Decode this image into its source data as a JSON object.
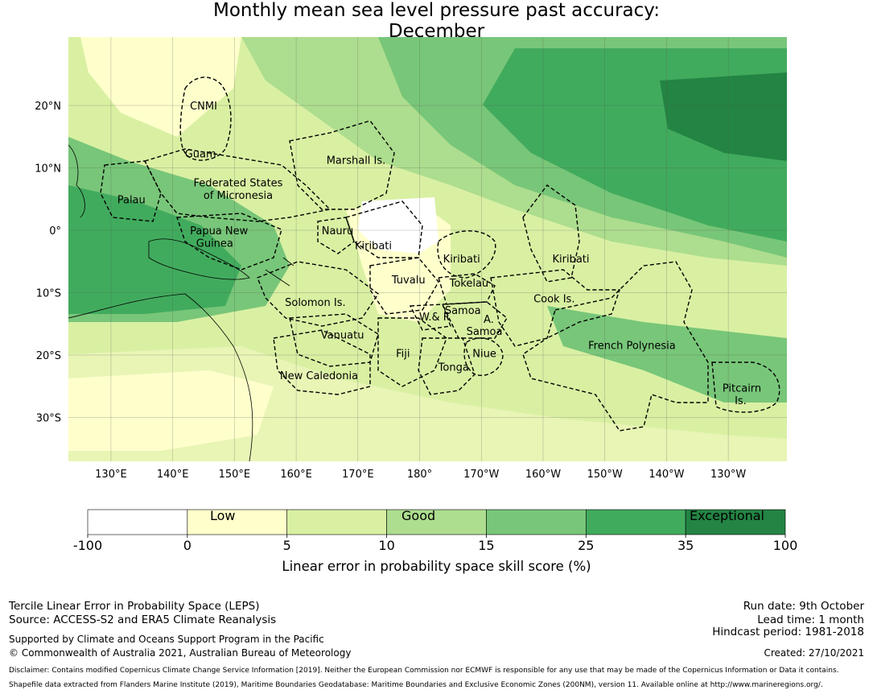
{
  "title": {
    "line1": "Monthly mean sea level pressure past accuracy:",
    "line2": "December"
  },
  "map": {
    "lat_ticks": [
      {
        "value": 20,
        "label": "20°N"
      },
      {
        "value": 10,
        "label": "10°N"
      },
      {
        "value": 0,
        "label": "0°"
      },
      {
        "value": -10,
        "label": "10°S"
      },
      {
        "value": -20,
        "label": "20°S"
      },
      {
        "value": -30,
        "label": "30°S"
      }
    ],
    "lon_ticks": [
      {
        "value": 130,
        "label": "130°E"
      },
      {
        "value": 140,
        "label": "140°E"
      },
      {
        "value": 150,
        "label": "150°E"
      },
      {
        "value": 160,
        "label": "160°E"
      },
      {
        "value": 170,
        "label": "170°E"
      },
      {
        "value": 180,
        "label": "180°"
      },
      {
        "value": 190,
        "label": "170°W"
      },
      {
        "value": 200,
        "label": "160°W"
      },
      {
        "value": 210,
        "label": "150°W"
      },
      {
        "value": 220,
        "label": "140°W"
      },
      {
        "value": 230,
        "label": "130°W"
      }
    ],
    "regions": [
      {
        "name": "CNMI",
        "lon": 145,
        "lat": 20
      },
      {
        "name": "Guam",
        "lon": 144.5,
        "lat": 12.3
      },
      {
        "name": "Marshall Is.",
        "lon": 169.7,
        "lat": 11.3
      },
      {
        "name": "Federated States",
        "lon": 150.6,
        "lat": 7.7
      },
      {
        "name": "of Micronesia",
        "lon": 150.6,
        "lat": 5.7
      },
      {
        "name": "Palau",
        "lon": 133.3,
        "lat": 5
      },
      {
        "name": "Papua New",
        "lon": 147.5,
        "lat": 0
      },
      {
        "name": "Guinea",
        "lon": 146.8,
        "lat": -2
      },
      {
        "name": "Nauru",
        "lon": 166.7,
        "lat": 0
      },
      {
        "name": "Kiribati",
        "lon": 172.5,
        "lat": -2.4
      },
      {
        "name": "Kiribati",
        "lon": 186.8,
        "lat": -4.5
      },
      {
        "name": "Kiribati",
        "lon": 204.5,
        "lat": -4.5
      },
      {
        "name": "Tuvalu",
        "lon": 178.2,
        "lat": -7.9
      },
      {
        "name": "Tokelau",
        "lon": 188,
        "lat": -8.4
      },
      {
        "name": "Solomon Is.",
        "lon": 163.1,
        "lat": -11.5
      },
      {
        "name": "Samoa",
        "lon": 187,
        "lat": -12.8
      },
      {
        "name": "W.& F.",
        "lon": 182.5,
        "lat": -13.8
      },
      {
        "name": "A.",
        "lon": 191.2,
        "lat": -14.2
      },
      {
        "name": "Samoa",
        "lon": 190.5,
        "lat": -16.1
      },
      {
        "name": "Cook Is.",
        "lon": 201.8,
        "lat": -10.9
      },
      {
        "name": "Vanuatu",
        "lon": 167.5,
        "lat": -16.7
      },
      {
        "name": "Fiji",
        "lon": 177.3,
        "lat": -19.7
      },
      {
        "name": "Niue",
        "lon": 190.5,
        "lat": -19.7
      },
      {
        "name": "Tonga",
        "lon": 185.5,
        "lat": -21.9
      },
      {
        "name": "French Polynesia",
        "lon": 214.4,
        "lat": -18.4
      },
      {
        "name": "New Caledonia",
        "lon": 163.7,
        "lat": -23.2
      },
      {
        "name": "Pitcairn",
        "lon": 232.2,
        "lat": -25.2
      },
      {
        "name": "Is.",
        "lon": 232,
        "lat": -27.2
      }
    ]
  },
  "colorbar": {
    "bounds": [
      "-100",
      "0",
      "5",
      "10",
      "15",
      "25",
      "35",
      "100"
    ],
    "colors": [
      "#ffffff",
      "#ffffcc",
      "#d9f0a3",
      "#addd8e",
      "#78c679",
      "#41ab5d",
      "#238443"
    ],
    "category_labels": {
      "low": "Low",
      "good": "Good",
      "exceptional": "Exceptional"
    },
    "xlabel": "Linear error in probability space skill score (%)"
  },
  "footer": {
    "left_line1": "Tercile Linear Error in Probability Space (LEPS)",
    "left_line2": "Source: ACCESS-S2 and ERA5 Climate Reanalysis",
    "left_line3": "Supported by Climate and Oceans Support Program in the Pacific",
    "left_line4": "© Commonwealth of Australia 2021, Australian Bureau of Meteorology",
    "right_line1": "Run date: 9th October",
    "right_line2": "Lead time: 1 month",
    "right_line3": "Hindcast period: 1981-2018",
    "right_line4": "Created: 27/10/2021",
    "disclaimer": "Disclaimer: Contains modified Copernicus Climate Change Service Information [2019]. Neither the European Commission nor ECMWF is responsible for any use that may be made of the Copernicus Information or Data it contains.",
    "shapefile": "Shapefile data extracted from Flanders Marine Institute (2019), Maritime Boundaries Geodatabase: Maritime Boundaries and Exclusive Economic Zones (200NM), version 11. Available online at http://www.marineregions.org/."
  }
}
